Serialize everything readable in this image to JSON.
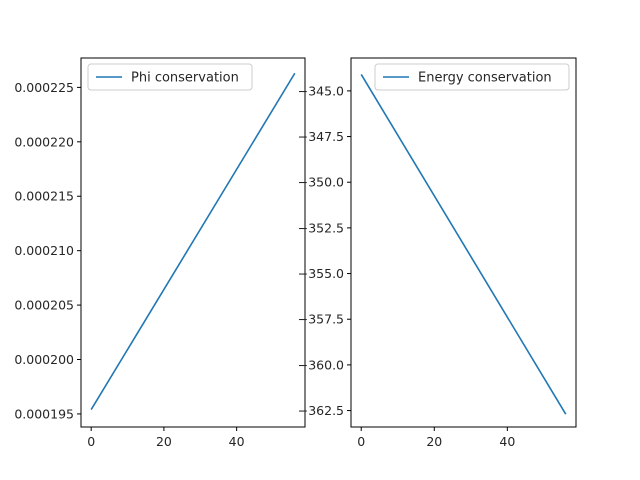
{
  "chart_data": [
    {
      "type": "line",
      "title": "",
      "xlabel": "",
      "ylabel": "",
      "x": [
        0,
        56
      ],
      "xlim": [
        -2.8,
        58.8
      ],
      "ylim": [
        0.0001938,
        0.0002277
      ],
      "xticks": [
        0,
        20,
        40
      ],
      "xtick_labels": [
        "0",
        "20",
        "40"
      ],
      "yticks": [
        0.000195,
        0.0002,
        0.000205,
        0.00021,
        0.000215,
        0.00022,
        0.000225
      ],
      "ytick_labels": [
        "0.000195",
        "0.000200",
        "0.000205",
        "0.000210",
        "0.000215",
        "0.000220",
        "0.000225"
      ],
      "legend_position": "top-left",
      "grid": false,
      "series": [
        {
          "name": "Phi conservation",
          "color": "#1f77b4",
          "x": [
            0,
            56
          ],
          "y": [
            0.0001954,
            0.0002263
          ]
        }
      ]
    },
    {
      "type": "line",
      "title": "",
      "xlabel": "",
      "ylabel": "",
      "x": [
        0,
        56
      ],
      "xlim": [
        -2.8,
        58.8
      ],
      "ylim": [
        -363.4,
        -343.2
      ],
      "xticks": [
        0,
        20,
        40
      ],
      "xtick_labels": [
        "0",
        "20",
        "40"
      ],
      "yticks": [
        -345.0,
        -347.5,
        -350.0,
        -352.5,
        -355.0,
        -357.5,
        -360.0,
        -362.5
      ],
      "ytick_labels": [
        "−345.0",
        "−347.5",
        "−350.0",
        "−352.5",
        "−355.0",
        "−357.5",
        "−360.0",
        "−362.5"
      ],
      "legend_position": "top-right",
      "grid": false,
      "series": [
        {
          "name": "Energy conservation",
          "color": "#1f77b4",
          "x": [
            0,
            56
          ],
          "y": [
            -344.1,
            -362.7
          ]
        }
      ]
    }
  ]
}
